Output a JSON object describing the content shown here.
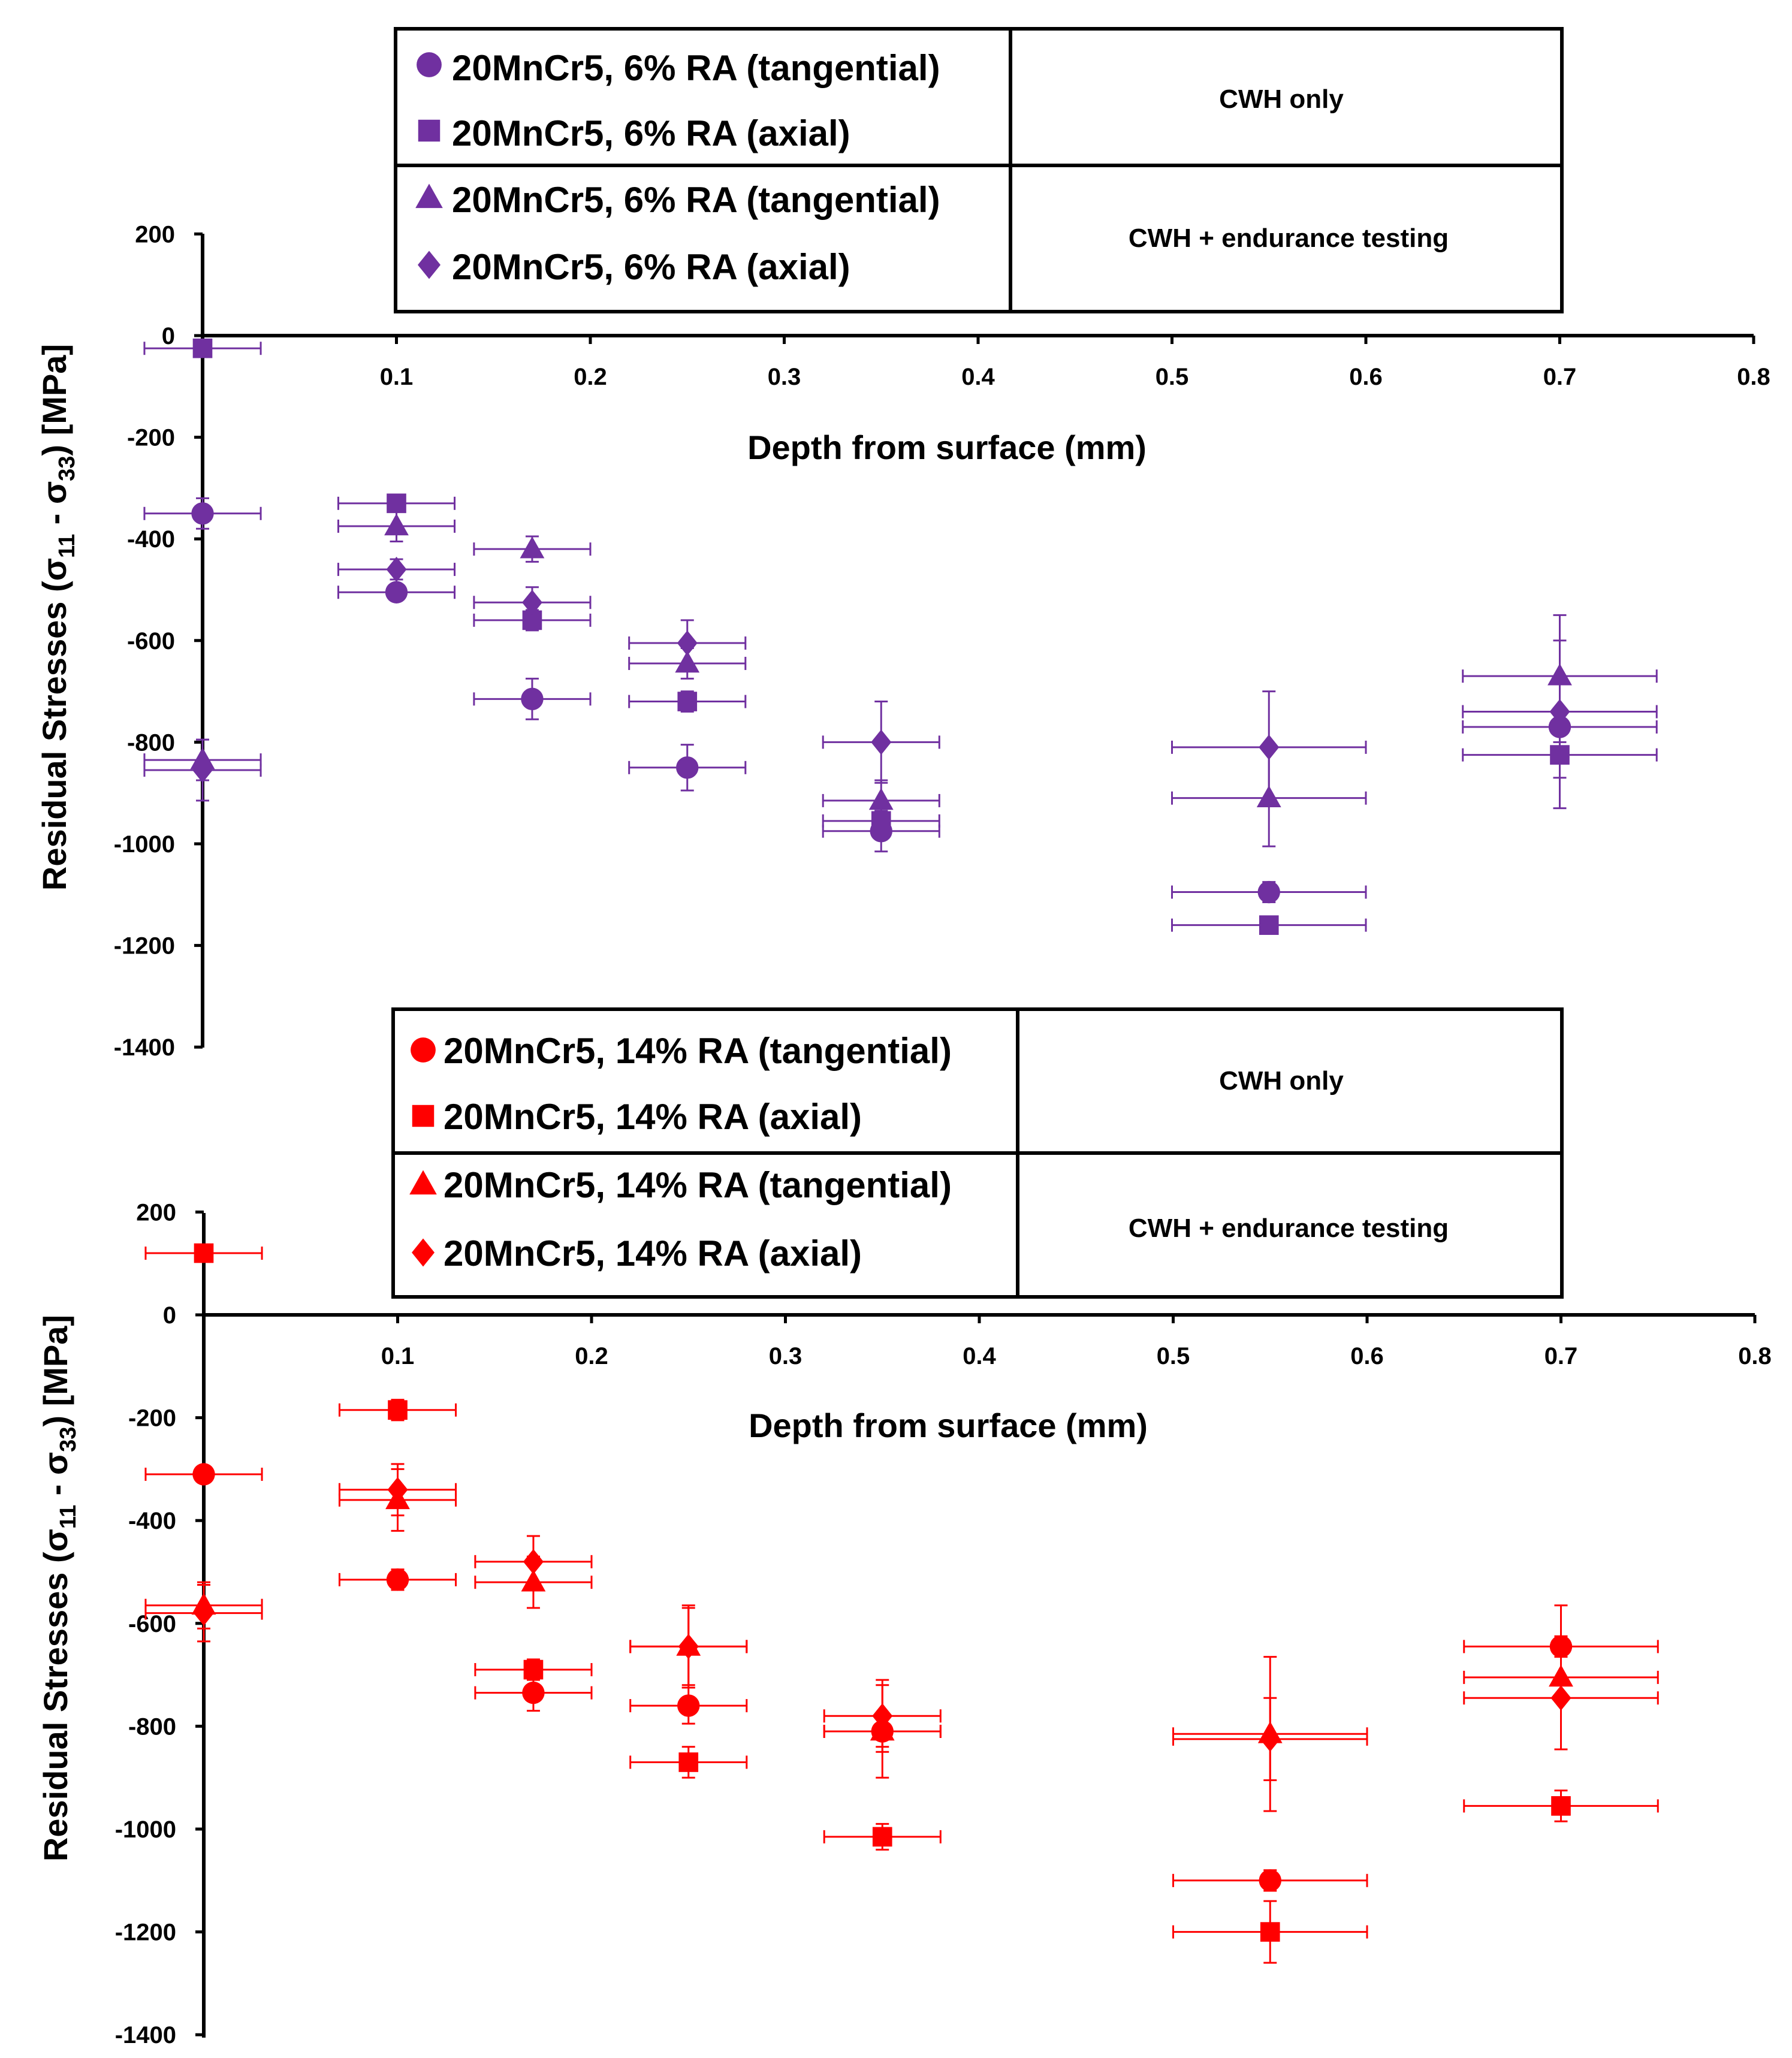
{
  "colors": {
    "top_series": "#7030A0",
    "bottom_series": "#FF0000",
    "axis": "#000000"
  },
  "chart_data": [
    {
      "type": "scatter",
      "title": "",
      "xlabel": "Depth from surface (mm)",
      "ylabel": "Residual Stresses (σ",
      "ylabel_sub1": "11",
      "ylabel_mid": " - σ",
      "ylabel_sub2": "33",
      "ylabel_end": ") [MPa]",
      "xlim": [
        0,
        0.8
      ],
      "ylim": [
        -1400,
        200
      ],
      "x_ticks": [
        "0.1",
        "0.2",
        "0.3",
        "0.4",
        "0.5",
        "0.6",
        "0.7",
        "0.8"
      ],
      "y_ticks": [
        "200",
        "0",
        "-200",
        "-400",
        "-600",
        "-800",
        "-1000",
        "-1200",
        "-1400"
      ],
      "legend": {
        "groups": [
          {
            "condition": "CWH only",
            "entries": [
              "20MnCr5, 6% RA (tangential)",
              "20MnCr5, 6% RA (axial)"
            ]
          },
          {
            "condition": "CWH + endurance testing",
            "entries": [
              "20MnCr5, 6% RA (tangential)",
              "20MnCr5, 6% RA (axial)"
            ]
          }
        ]
      },
      "series": [
        {
          "name": "20MnCr5, 6% RA (tangential) - CWH only",
          "marker": "circle",
          "x": [
            0,
            0.1,
            0.17,
            0.25,
            0.35,
            0.55,
            0.7
          ],
          "y": [
            -350,
            -505,
            -715,
            -850,
            -975,
            -1095,
            -770
          ],
          "yerr": [
            30,
            15,
            40,
            45,
            40,
            20,
            30
          ],
          "xerr": [
            0.03,
            0.03,
            0.03,
            0.03,
            0.03,
            0.05,
            0.05
          ]
        },
        {
          "name": "20MnCr5, 6% RA (axial) - CWH only",
          "marker": "square",
          "x": [
            0,
            0.1,
            0.17,
            0.25,
            0.35,
            0.55,
            0.7
          ],
          "y": [
            -25,
            -330,
            -560,
            -720,
            -955,
            -1160,
            -825
          ],
          "yerr": [
            10,
            10,
            20,
            20,
            20,
            15,
            45
          ],
          "xerr": [
            0.03,
            0.03,
            0.03,
            0.03,
            0.03,
            0.05,
            0.05
          ]
        },
        {
          "name": "20MnCr5, 6% RA (tangential) - CWH + endurance testing",
          "marker": "triangle",
          "x": [
            0,
            0.1,
            0.17,
            0.25,
            0.35,
            0.55,
            0.7
          ],
          "y": [
            -835,
            -375,
            -420,
            -645,
            -915,
            -910,
            -670
          ],
          "yerr": [
            40,
            30,
            25,
            30,
            40,
            95,
            70
          ],
          "xerr": [
            0.03,
            0.03,
            0.03,
            0.03,
            0.03,
            0.05,
            0.05
          ]
        },
        {
          "name": "20MnCr5, 6% RA (axial) - CWH + endurance testing",
          "marker": "diamond",
          "x": [
            0,
            0.1,
            0.17,
            0.25,
            0.35,
            0.55,
            0.7
          ],
          "y": [
            -855,
            -460,
            -525,
            -605,
            -800,
            -810,
            -740
          ],
          "yerr": [
            60,
            20,
            30,
            45,
            80,
            110,
            190
          ],
          "xerr": [
            0.03,
            0.03,
            0.03,
            0.03,
            0.03,
            0.05,
            0.05
          ]
        }
      ]
    },
    {
      "type": "scatter",
      "title": "",
      "xlabel": "Depth from surface (mm)",
      "ylabel": "Residual Stresses (σ",
      "ylabel_sub1": "11",
      "ylabel_mid": " - σ",
      "ylabel_sub2": "33",
      "ylabel_end": ") [MPa]",
      "xlim": [
        0,
        0.8
      ],
      "ylim": [
        -1400,
        200
      ],
      "x_ticks": [
        "0.1",
        "0.2",
        "0.3",
        "0.4",
        "0.5",
        "0.6",
        "0.7",
        "0.8"
      ],
      "y_ticks": [
        "200",
        "0",
        "-200",
        "-400",
        "-600",
        "-800",
        "-1000",
        "-1200",
        "-1400"
      ],
      "legend": {
        "groups": [
          {
            "condition": "CWH only",
            "entries": [
              "20MnCr5, 14% RA (tangential)",
              "20MnCr5, 14% RA (axial)"
            ]
          },
          {
            "condition": "CWH + endurance testing",
            "entries": [
              "20MnCr5, 14% RA (tangential)",
              "20MnCr5, 14% RA (axial)"
            ]
          }
        ]
      },
      "series": [
        {
          "name": "20MnCr5, 14% RA (tangential) - CWH only",
          "marker": "circle",
          "x": [
            0,
            0.1,
            0.17,
            0.25,
            0.35,
            0.55,
            0.7
          ],
          "y": [
            -310,
            -515,
            -735,
            -760,
            -810,
            -1100,
            -645
          ],
          "yerr": [
            15,
            20,
            35,
            35,
            30,
            20,
            20
          ],
          "xerr": [
            0.03,
            0.03,
            0.03,
            0.03,
            0.03,
            0.05,
            0.05
          ]
        },
        {
          "name": "20MnCr5, 14% RA (axial) - CWH only",
          "marker": "square",
          "x": [
            0,
            0.1,
            0.17,
            0.25,
            0.35,
            0.55,
            0.7
          ],
          "y": [
            120,
            -185,
            -690,
            -870,
            -1015,
            -1200,
            -955
          ],
          "yerr": [
            10,
            20,
            20,
            30,
            25,
            60,
            30
          ],
          "xerr": [
            0.03,
            0.03,
            0.03,
            0.03,
            0.03,
            0.05,
            0.05
          ]
        },
        {
          "name": "20MnCr5, 14% RA (tangential) - CWH + endurance testing",
          "marker": "triangle",
          "x": [
            0,
            0.1,
            0.17,
            0.25,
            0.35,
            0.55,
            0.7
          ],
          "y": [
            -565,
            -360,
            -520,
            -645,
            -810,
            -815,
            -705
          ],
          "yerr": [
            45,
            60,
            50,
            80,
            90,
            150,
            140
          ],
          "xerr": [
            0.03,
            0.03,
            0.03,
            0.03,
            0.03,
            0.05,
            0.05
          ]
        },
        {
          "name": "20MnCr5, 14% RA (axial) - CWH + endurance testing",
          "marker": "diamond",
          "x": [
            0,
            0.1,
            0.17,
            0.25,
            0.35,
            0.55,
            0.7
          ],
          "y": [
            -580,
            -340,
            -480,
            -645,
            -780,
            -825,
            -745
          ],
          "yerr": [
            55,
            50,
            50,
            75,
            70,
            80,
            100
          ],
          "xerr": [
            0.03,
            0.03,
            0.03,
            0.03,
            0.03,
            0.05,
            0.05
          ]
        }
      ]
    }
  ]
}
